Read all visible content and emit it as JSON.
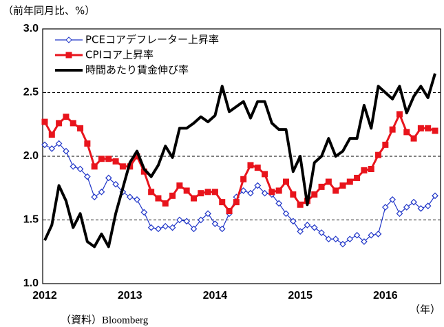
{
  "chart_data": {
    "type": "line",
    "y_label": "（前年同月比、%）",
    "x_label": "（年）",
    "source": "（資料）Bloomberg",
    "categories": [
      "2012",
      null,
      null,
      null,
      null,
      null,
      null,
      null,
      null,
      null,
      null,
      null,
      "2013",
      null,
      null,
      null,
      null,
      null,
      null,
      null,
      null,
      null,
      null,
      null,
      "2014",
      null,
      null,
      null,
      null,
      null,
      null,
      null,
      null,
      null,
      null,
      null,
      "2015",
      null,
      null,
      null,
      null,
      null,
      null,
      null,
      null,
      null,
      null,
      null,
      "2016",
      null,
      null,
      null,
      null,
      null,
      null,
      null
    ],
    "ylim": [
      1.0,
      3.0
    ],
    "yticks": [
      {
        "value": 1.0,
        "label": "1.0"
      },
      {
        "value": 1.5,
        "label": "1.5"
      },
      {
        "value": 2.0,
        "label": "2.0"
      },
      {
        "value": 2.5,
        "label": "2.5"
      },
      {
        "value": 3.0,
        "label": "3.0"
      }
    ],
    "grid": true,
    "legend": "upper left",
    "series": [
      {
        "name": "PCEコアデフレーター上昇率",
        "color": "#1f35c8",
        "marker": "diamond",
        "values": [
          2.09,
          2.06,
          2.1,
          2.04,
          1.92,
          1.9,
          1.84,
          1.68,
          1.72,
          1.83,
          1.78,
          1.72,
          1.68,
          1.66,
          1.56,
          1.44,
          1.43,
          1.45,
          1.44,
          1.5,
          1.49,
          1.43,
          1.5,
          1.55,
          1.47,
          1.43,
          1.55,
          1.68,
          1.73,
          1.71,
          1.77,
          1.71,
          1.7,
          1.63,
          1.55,
          1.49,
          1.41,
          1.46,
          1.44,
          1.4,
          1.35,
          1.35,
          1.31,
          1.35,
          1.38,
          1.33,
          1.38,
          1.39,
          1.6,
          1.66,
          1.55,
          1.6,
          1.64,
          1.59,
          1.61,
          1.69
        ]
      },
      {
        "name": "CPIコア上昇率",
        "color": "#e8141c",
        "marker": "square",
        "values": [
          2.27,
          2.17,
          2.26,
          2.31,
          2.26,
          2.22,
          2.1,
          1.92,
          1.98,
          1.98,
          1.96,
          1.92,
          1.92,
          2.0,
          1.88,
          1.72,
          1.67,
          1.63,
          1.69,
          1.77,
          1.73,
          1.67,
          1.71,
          1.72,
          1.72,
          1.64,
          1.57,
          1.64,
          1.82,
          1.93,
          1.91,
          1.86,
          1.72,
          1.73,
          1.8,
          1.7,
          1.62,
          1.65,
          1.7,
          1.76,
          1.8,
          1.73,
          1.77,
          1.8,
          1.83,
          1.89,
          1.9,
          2.01,
          2.09,
          2.21,
          2.33,
          2.19,
          2.14,
          2.22,
          2.22,
          2.2
        ]
      },
      {
        "name": "時間あたり賃金伸び率",
        "color": "#000000",
        "marker": "none",
        "values": [
          1.34,
          1.46,
          1.77,
          1.65,
          1.44,
          1.55,
          1.33,
          1.29,
          1.39,
          1.29,
          1.55,
          1.75,
          1.95,
          2.04,
          1.9,
          1.84,
          1.93,
          2.08,
          1.99,
          2.22,
          2.22,
          2.26,
          2.31,
          2.27,
          2.32,
          2.55,
          2.35,
          2.39,
          2.43,
          2.3,
          2.43,
          2.43,
          2.26,
          2.21,
          2.21,
          1.88,
          2.0,
          1.62,
          1.95,
          2.0,
          2.14,
          2.0,
          2.04,
          2.14,
          2.14,
          2.4,
          2.22,
          2.55,
          2.5,
          2.45,
          2.55,
          2.34,
          2.47,
          2.55,
          2.46,
          2.65
        ]
      }
    ]
  }
}
